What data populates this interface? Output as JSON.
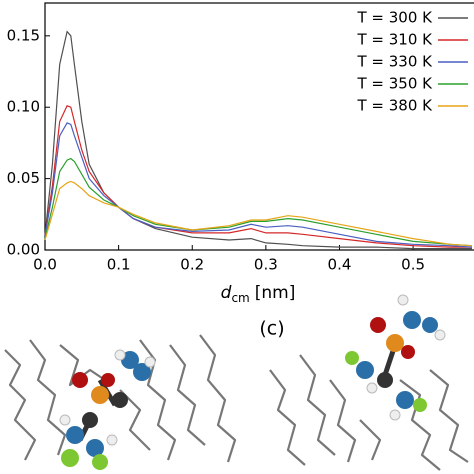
{
  "chart_data": {
    "type": "line",
    "x_label": {
      "symbol": "d",
      "subscript": "cm",
      "unit": "[nm]"
    },
    "panel_label": "(c)",
    "x": [
      0.0,
      0.01,
      0.02,
      0.03,
      0.035,
      0.04,
      0.05,
      0.06,
      0.08,
      0.1,
      0.12,
      0.15,
      0.2,
      0.25,
      0.28,
      0.3,
      0.33,
      0.35,
      0.4,
      0.45,
      0.5,
      0.55,
      0.58
    ],
    "series": [
      {
        "name": "T = 300 K",
        "color": "#505050",
        "values": [
          0.01,
          0.06,
          0.13,
          0.153,
          0.15,
          0.13,
          0.09,
          0.06,
          0.04,
          0.03,
          0.022,
          0.015,
          0.009,
          0.007,
          0.008,
          0.005,
          0.004,
          0.003,
          0.002,
          0.002,
          0.001,
          0.001,
          0.001
        ]
      },
      {
        "name": "T = 310 K",
        "color": "#d62728",
        "values": [
          0.01,
          0.045,
          0.09,
          0.101,
          0.1,
          0.09,
          0.07,
          0.055,
          0.04,
          0.03,
          0.022,
          0.016,
          0.012,
          0.012,
          0.015,
          0.012,
          0.012,
          0.011,
          0.008,
          0.005,
          0.003,
          0.002,
          0.002
        ]
      },
      {
        "name": "T = 330 K",
        "color": "#4a5fc1",
        "values": [
          0.01,
          0.04,
          0.08,
          0.089,
          0.088,
          0.08,
          0.065,
          0.05,
          0.038,
          0.03,
          0.022,
          0.016,
          0.013,
          0.014,
          0.018,
          0.016,
          0.017,
          0.016,
          0.011,
          0.006,
          0.004,
          0.003,
          0.002
        ]
      },
      {
        "name": "T = 350 K",
        "color": "#2ca02c",
        "values": [
          0.008,
          0.03,
          0.055,
          0.063,
          0.064,
          0.062,
          0.053,
          0.044,
          0.035,
          0.03,
          0.024,
          0.018,
          0.014,
          0.016,
          0.02,
          0.02,
          0.022,
          0.021,
          0.016,
          0.011,
          0.006,
          0.004,
          0.003
        ]
      },
      {
        "name": "T = 380 K",
        "color": "#e6a417",
        "values": [
          0.007,
          0.025,
          0.043,
          0.047,
          0.048,
          0.047,
          0.043,
          0.038,
          0.033,
          0.03,
          0.025,
          0.019,
          0.014,
          0.017,
          0.021,
          0.021,
          0.024,
          0.023,
          0.018,
          0.013,
          0.008,
          0.004,
          0.003
        ]
      }
    ],
    "xlim": [
      0,
      0.58
    ],
    "ylim": [
      0,
      0.173
    ],
    "xticks": [
      {
        "value": 0,
        "label": "0.0"
      },
      0.1,
      0.2,
      0.3,
      0.4,
      0.5
    ],
    "yticks": [
      {
        "value": 0,
        "label": "0.00"
      },
      0.05,
      {
        "value": 0.1,
        "label": "0.10"
      },
      0.15
    ],
    "legend": "upper right"
  }
}
